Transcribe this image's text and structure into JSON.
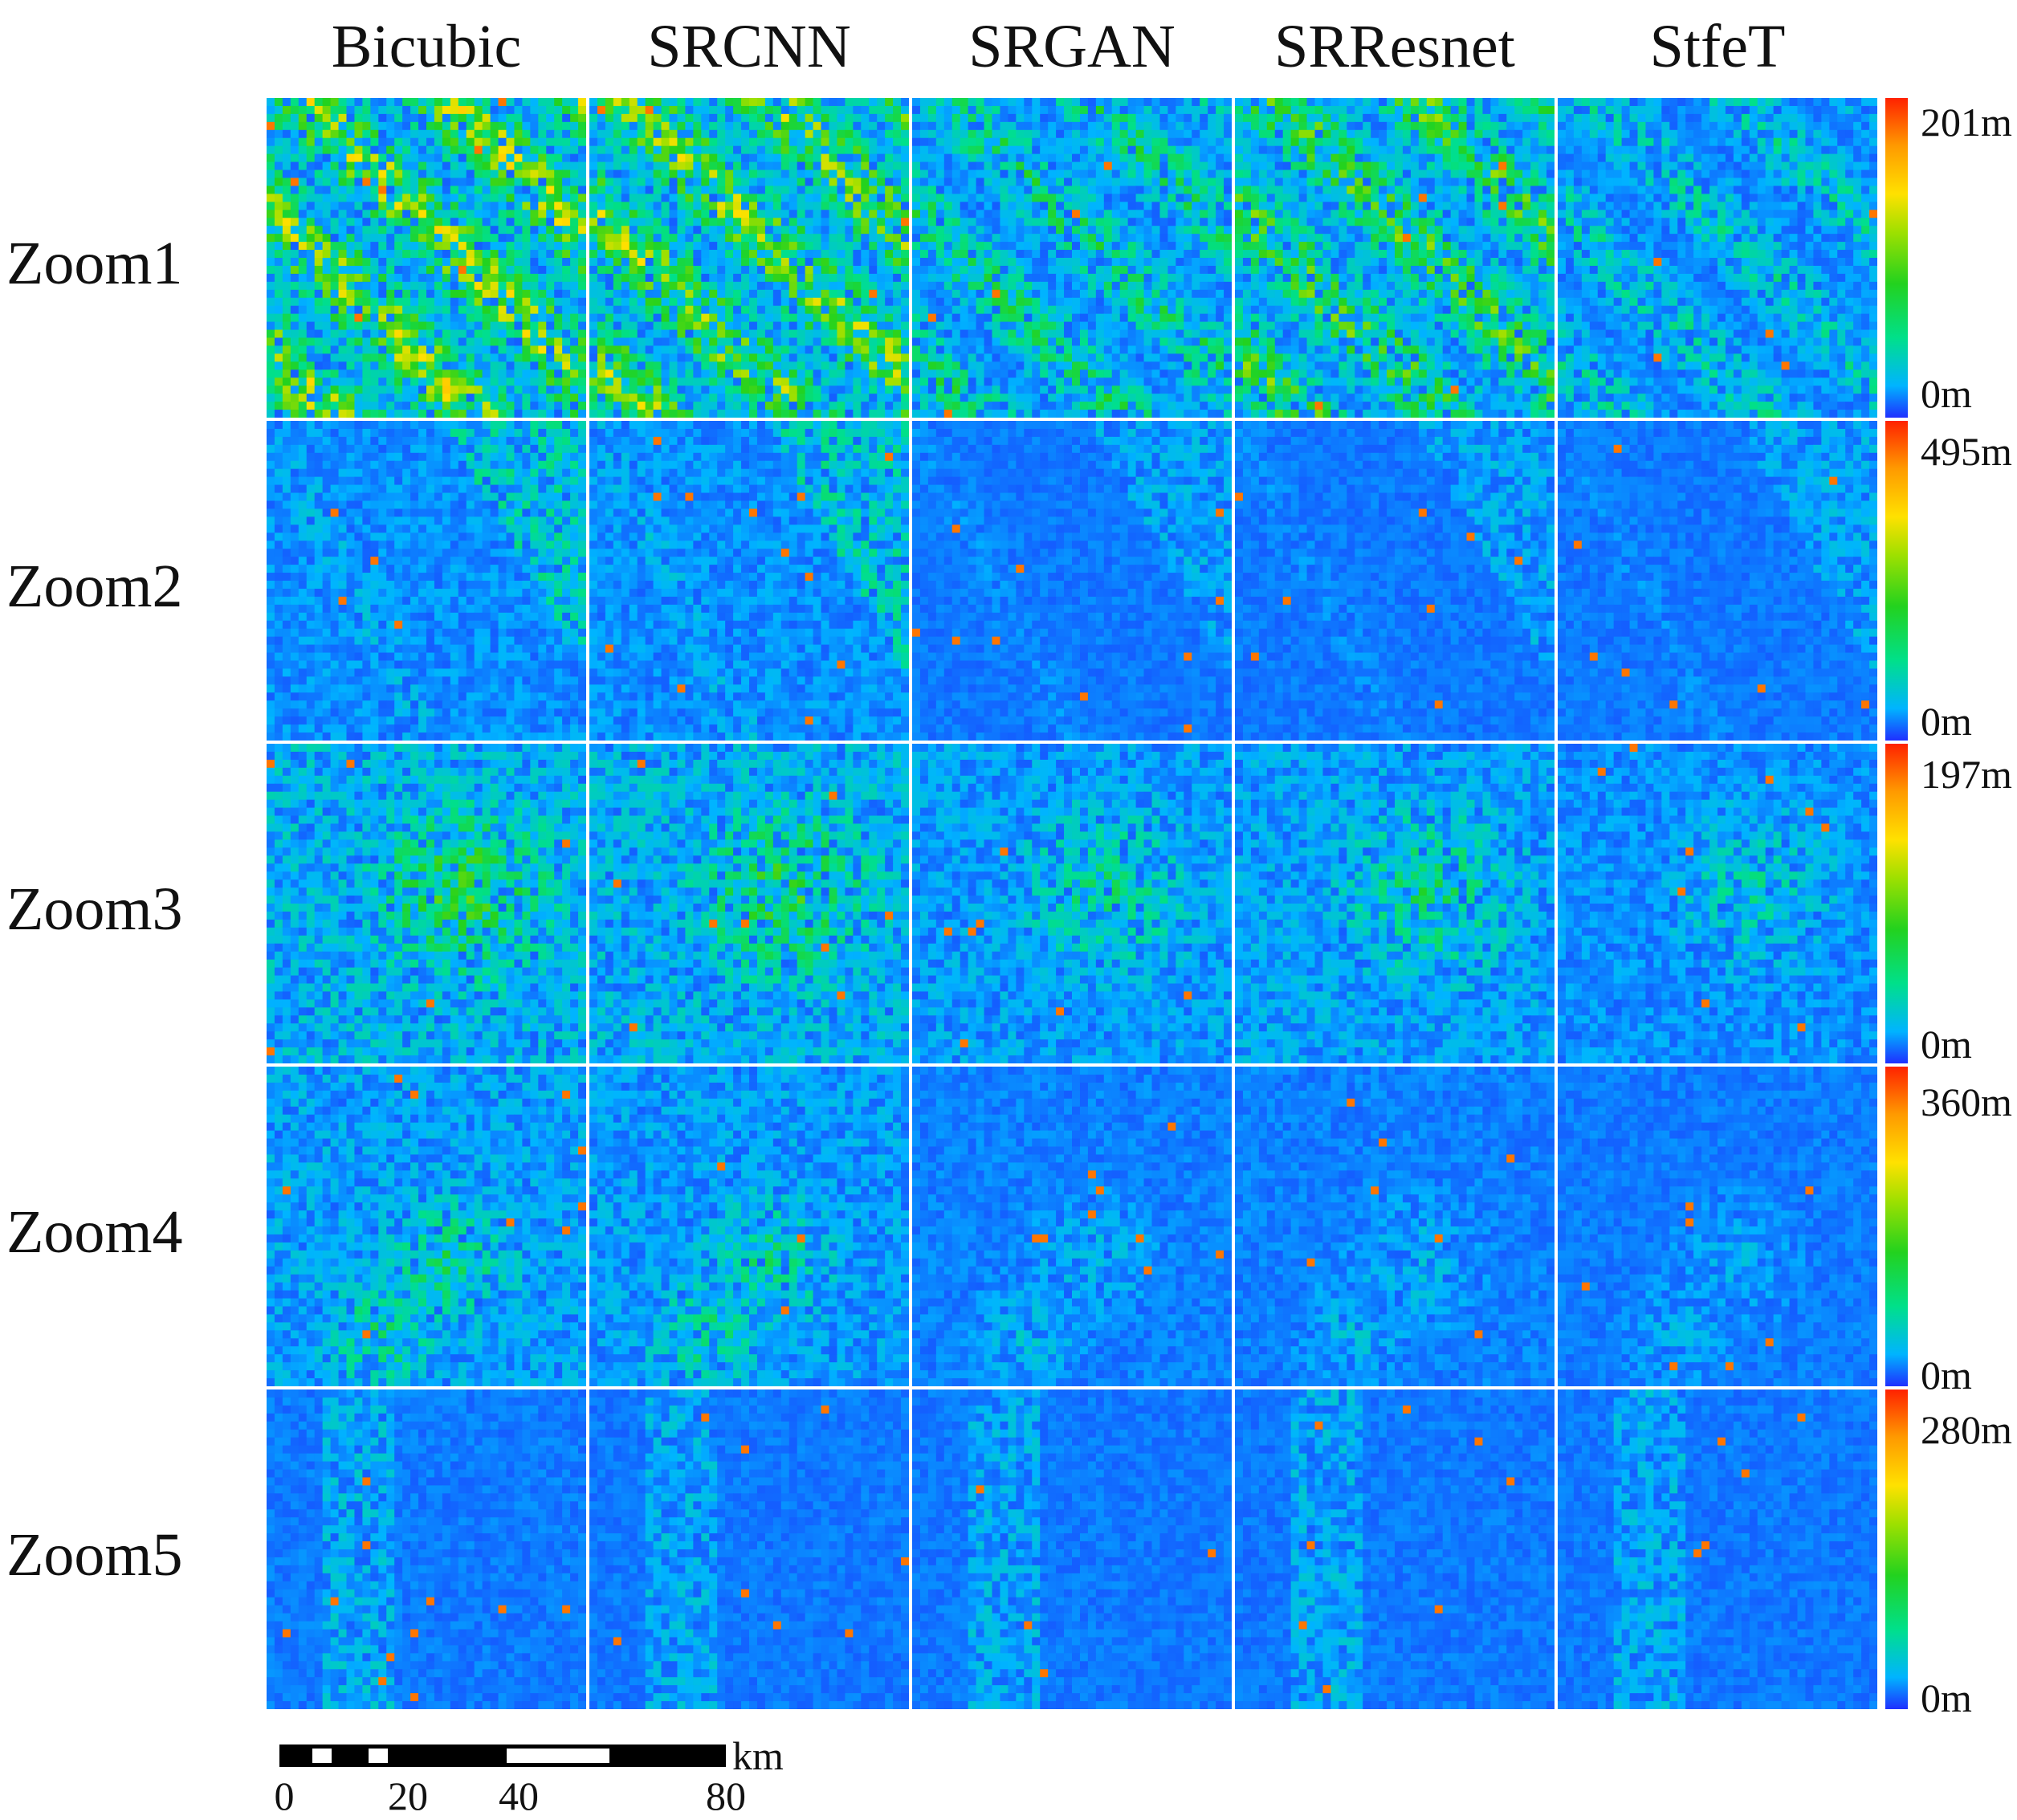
{
  "columns": [
    "Bicubic",
    "SRCNN",
    "SRGAN",
    "SRResnet",
    "StfeT"
  ],
  "rows": [
    {
      "label": "Zoom1",
      "max": "201m",
      "min": "0m",
      "intensity": [
        0.55,
        0.52,
        0.3,
        0.42,
        0.22
      ]
    },
    {
      "label": "Zoom2",
      "max": "495m",
      "min": "0m",
      "intensity": [
        0.22,
        0.22,
        0.12,
        0.12,
        0.12
      ]
    },
    {
      "label": "Zoom3",
      "max": "197m",
      "min": "0m",
      "intensity": [
        0.4,
        0.38,
        0.28,
        0.3,
        0.22
      ]
    },
    {
      "label": "Zoom4",
      "max": "360m",
      "min": "0m",
      "intensity": [
        0.3,
        0.28,
        0.15,
        0.15,
        0.13
      ]
    },
    {
      "label": "Zoom5",
      "max": "280m",
      "min": "0m",
      "intensity": [
        0.14,
        0.13,
        0.13,
        0.13,
        0.13
      ]
    }
  ],
  "colorbar": {
    "colors": [
      "#1f2fff",
      "#00b4ff",
      "#00e08a",
      "#23d21e",
      "#9ee000",
      "#ffe100",
      "#ff9a00",
      "#ff2200"
    ]
  },
  "scale_bar": {
    "unit": "km",
    "ticks": [
      "0",
      "20",
      "40",
      "80"
    ]
  }
}
